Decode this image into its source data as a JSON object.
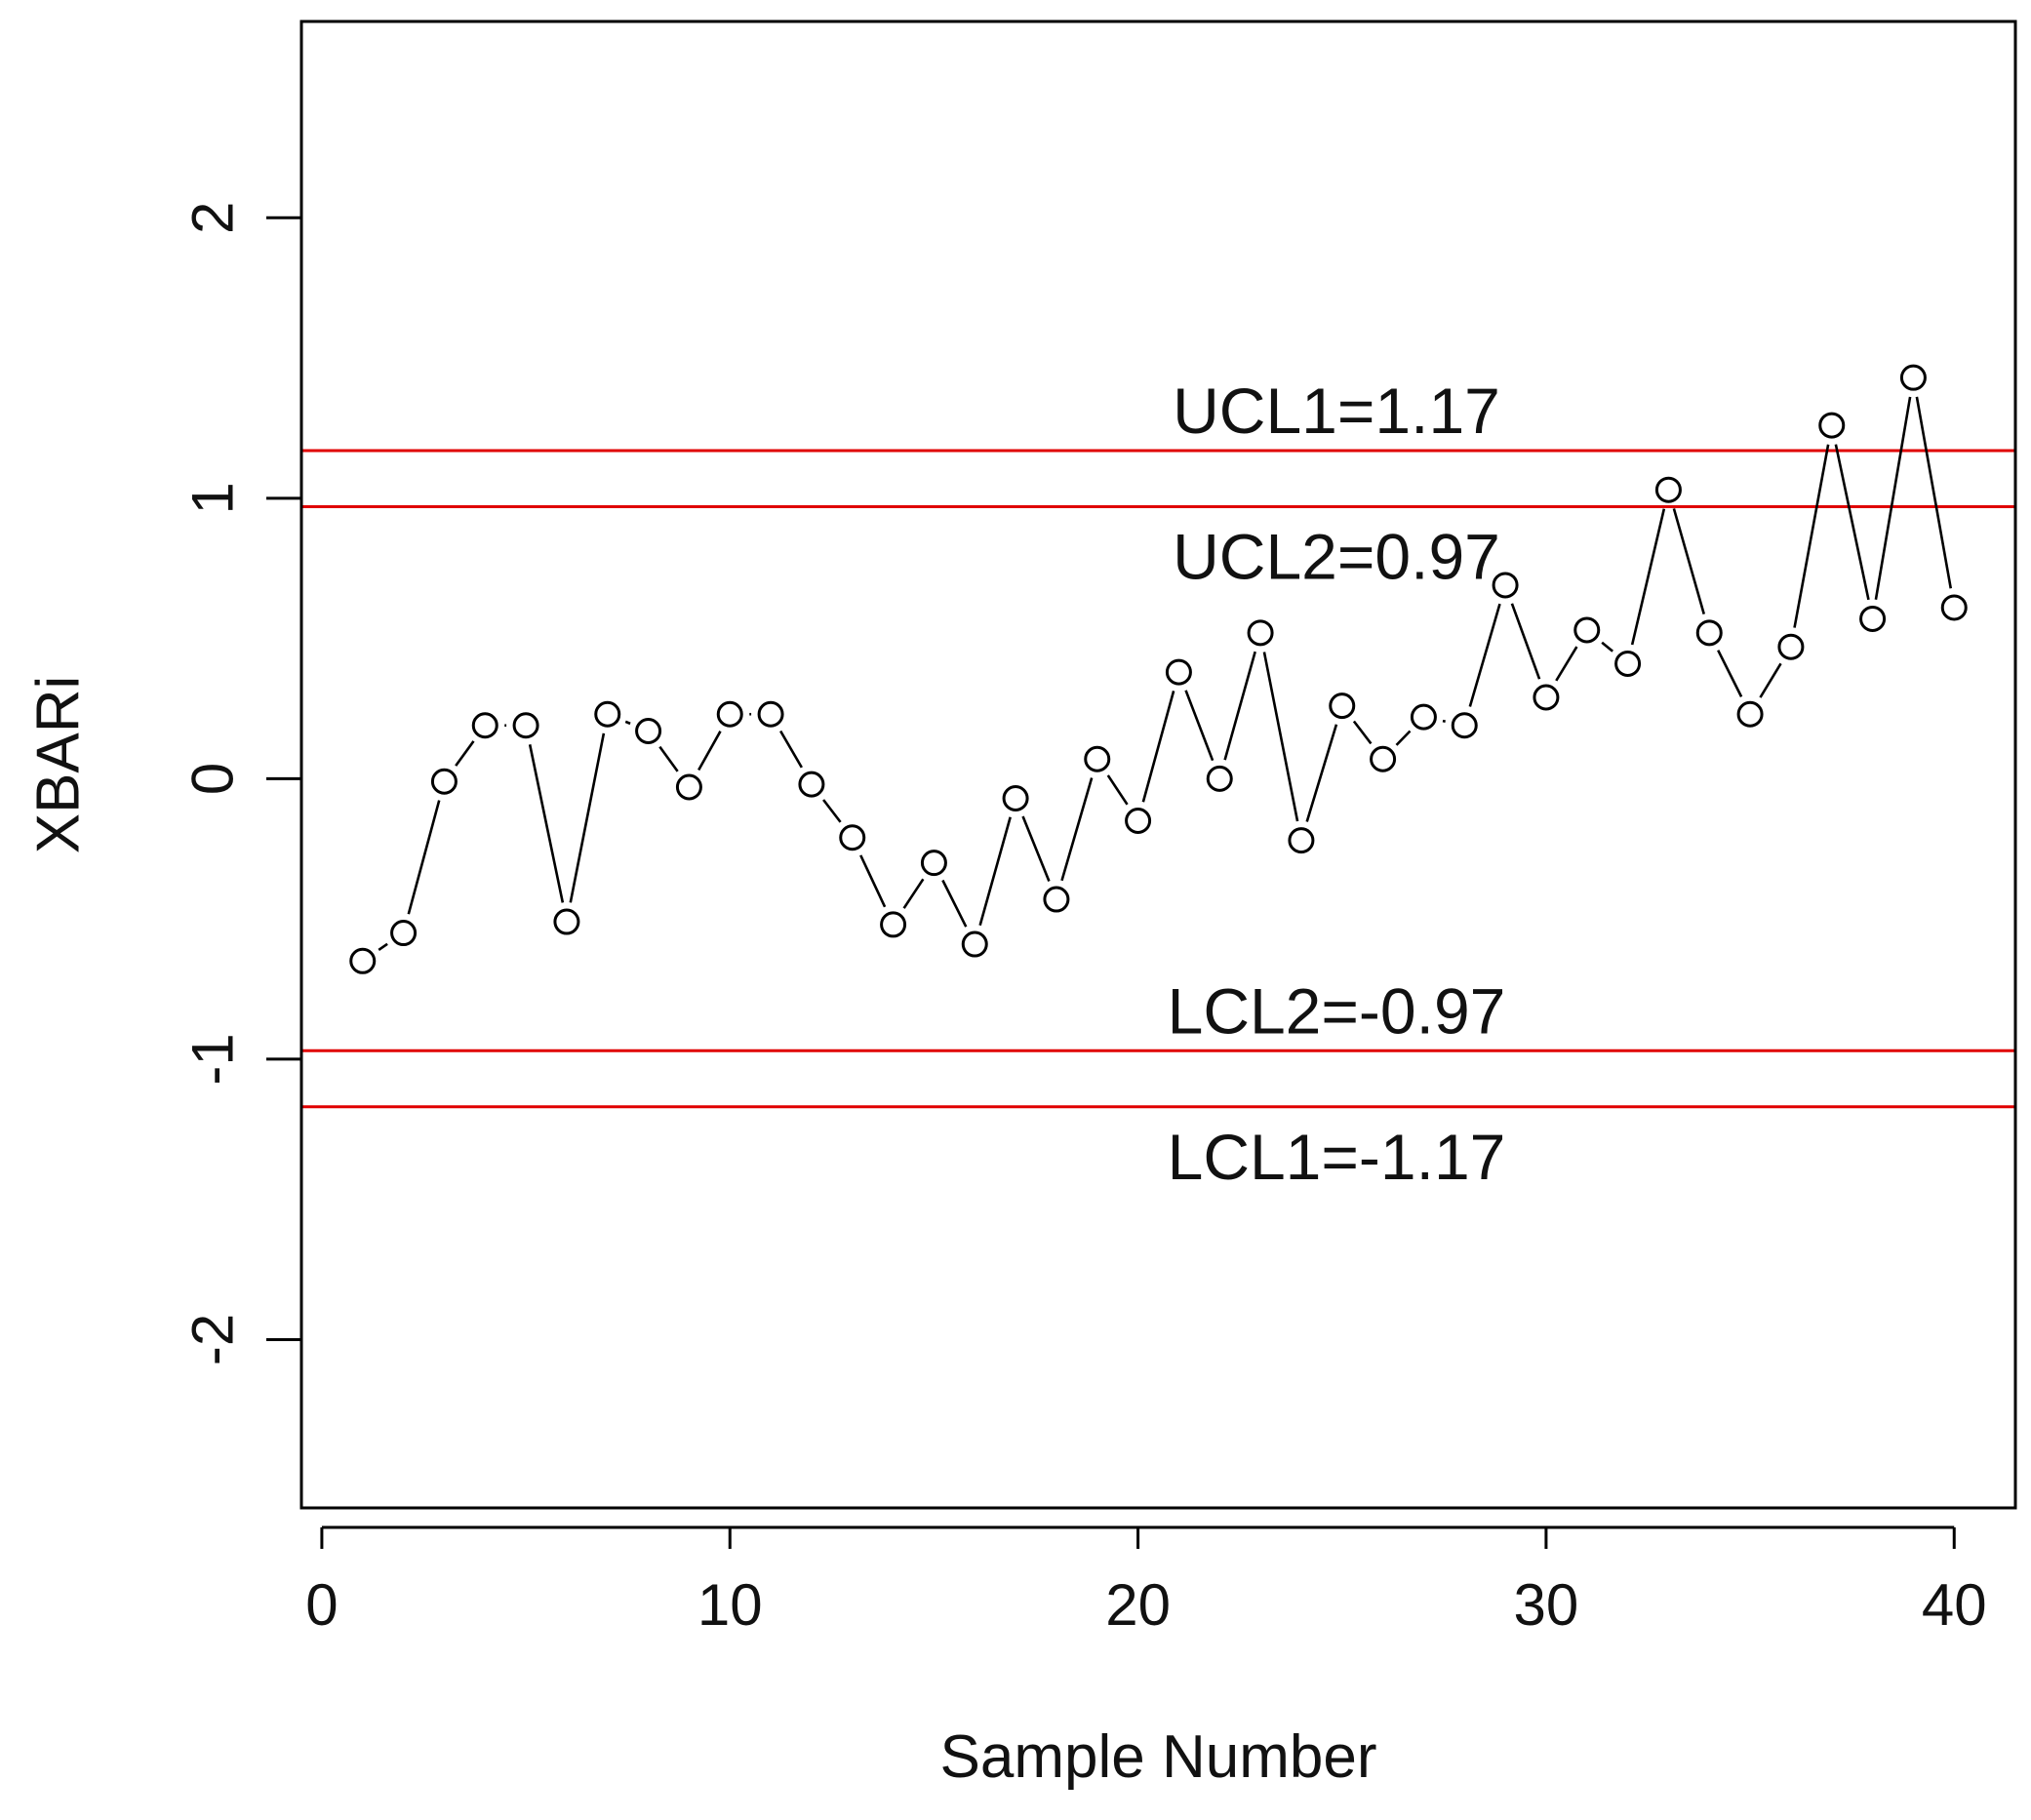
{
  "chart_data": {
    "type": "line",
    "xlabel": "Sample Number",
    "ylabel": "XBARi",
    "xlim": [
      -0.5,
      41.5
    ],
    "ylim": [
      -2.6,
      2.7
    ],
    "x_ticks": [
      0,
      10,
      20,
      30,
      40
    ],
    "y_ticks": [
      -2,
      -1,
      0,
      1,
      2
    ],
    "grid": false,
    "marker": "open-circle",
    "line_color": "#000000",
    "series": [
      {
        "x": [
          1,
          2,
          3,
          4,
          5,
          6,
          7,
          8,
          9,
          10,
          11,
          12,
          13,
          14,
          15,
          16,
          17,
          18,
          19,
          20,
          21,
          22,
          23,
          24,
          25,
          26,
          27,
          28,
          29,
          30,
          31,
          32,
          33,
          34,
          35,
          36,
          37,
          38,
          39,
          40
        ],
        "values": [
          -0.65,
          -0.55,
          -0.01,
          0.19,
          0.19,
          -0.51,
          0.23,
          0.17,
          -0.03,
          0.23,
          0.23,
          -0.02,
          -0.21,
          -0.52,
          -0.3,
          -0.59,
          -0.07,
          -0.43,
          0.07,
          -0.15,
          0.38,
          0.0,
          0.52,
          -0.22,
          0.26,
          0.07,
          0.22,
          0.19,
          0.69,
          0.29,
          0.53,
          0.41,
          1.03,
          0.52,
          0.23,
          0.47,
          1.26,
          0.57,
          1.43,
          0.61
        ]
      }
    ],
    "control_limits": [
      {
        "label": "UCL1=1.17",
        "value": 1.17,
        "color": "#e00000"
      },
      {
        "label": "UCL2=0.97",
        "value": 0.97,
        "color": "#e00000"
      },
      {
        "label": "LCL2=-0.97",
        "value": -0.97,
        "color": "#e00000"
      },
      {
        "label": "LCL1=-1.17",
        "value": -1.17,
        "color": "#e00000"
      }
    ]
  }
}
